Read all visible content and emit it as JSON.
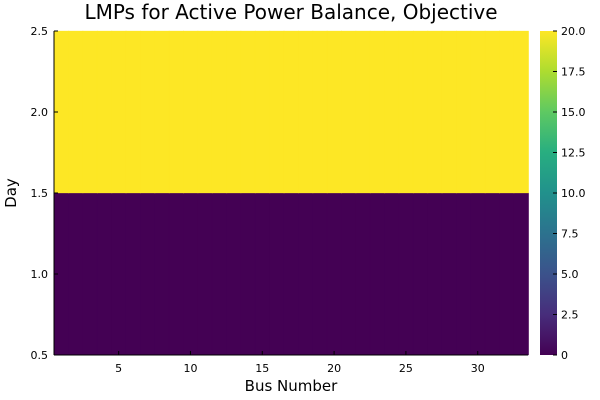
{
  "chart_data": {
    "type": "heatmap",
    "title": "LMPs for Active Power Balance, Objective",
    "xlabel": "Bus Number",
    "ylabel": "Day",
    "x": [
      1,
      2,
      3,
      4,
      5,
      6,
      7,
      8,
      9,
      10,
      11,
      12,
      13,
      14,
      15,
      16,
      17,
      18,
      19,
      20,
      21,
      22,
      23,
      24,
      25,
      26,
      27,
      28,
      29,
      30,
      31,
      32,
      33
    ],
    "y": [
      1,
      2
    ],
    "z": [
      [
        0,
        0,
        0,
        0,
        0,
        0,
        0,
        0,
        0,
        0,
        0,
        0,
        0,
        0,
        0,
        0,
        0,
        0,
        0,
        0,
        0,
        0,
        0,
        0,
        0,
        0,
        0,
        0,
        0,
        0,
        0,
        0,
        0
      ],
      [
        20,
        20,
        20,
        20,
        20,
        20,
        20,
        20,
        20,
        20,
        20,
        20,
        20,
        20,
        20,
        20,
        20,
        20,
        20,
        20,
        20,
        20,
        20,
        20,
        20,
        20,
        20,
        20,
        20,
        20,
        20,
        20,
        20
      ]
    ],
    "xlim": [
      0.5,
      33.5
    ],
    "ylim": [
      0.5,
      2.5
    ],
    "xticks": [
      5,
      10,
      15,
      20,
      25,
      30
    ],
    "xtick_labels": [
      "5",
      "10",
      "15",
      "20",
      "25",
      "30"
    ],
    "yticks": [
      0.5,
      1.0,
      1.5,
      2.0,
      2.5
    ],
    "ytick_labels": [
      "0.5",
      "1.0",
      "1.5",
      "2.0",
      "2.5"
    ],
    "colorbar": {
      "colormap": "viridis",
      "clim": [
        0,
        20
      ],
      "ticks": [
        0,
        2.5,
        5,
        7.5,
        10,
        12.5,
        15,
        17.5,
        20
      ],
      "tick_labels": [
        "0",
        "2.5",
        "5.0",
        "7.5",
        "10.0",
        "12.5",
        "15.0",
        "17.5",
        "20.0"
      ]
    },
    "grid": false
  }
}
